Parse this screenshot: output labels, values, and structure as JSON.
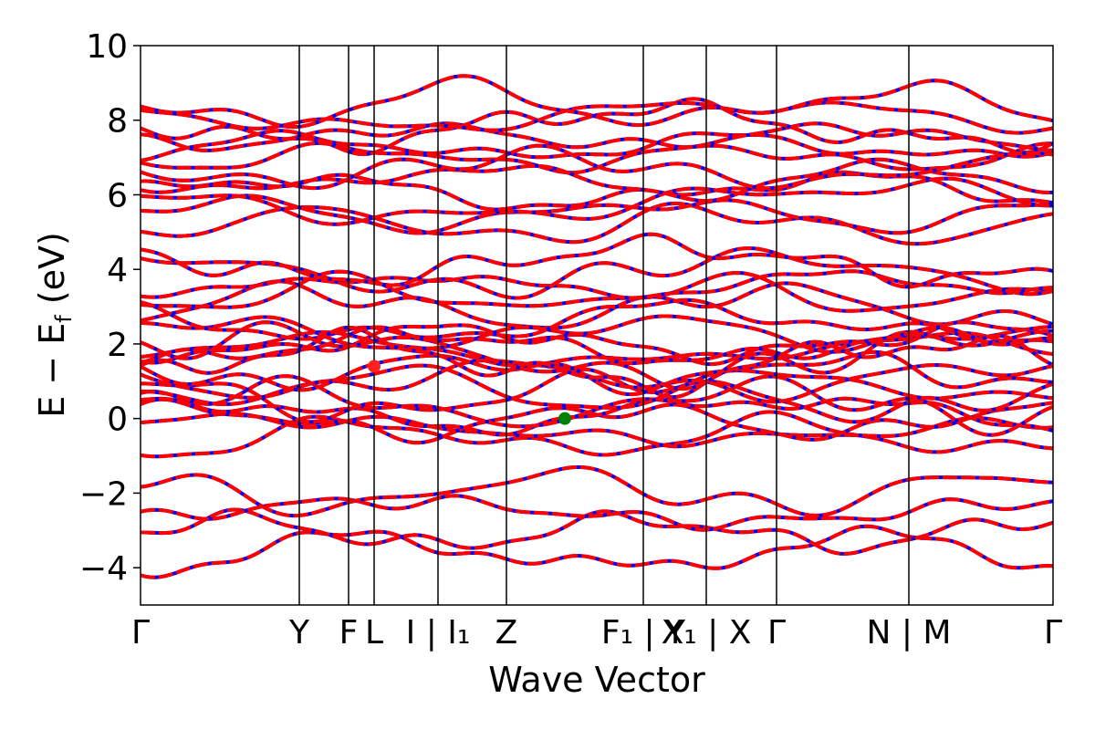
{
  "chart_data": {
    "type": "line",
    "title": "",
    "xlabel": "Wave Vector",
    "ylabel": "E − E",
    "ylabel_sub": "f",
    "ylabel_unit": " (eV)",
    "ylim": [
      -5,
      10
    ],
    "yticks": [
      {
        "value": -4,
        "label": "−4"
      },
      {
        "value": -2,
        "label": "−2"
      },
      {
        "value": 0,
        "label": "0"
      },
      {
        "value": 2,
        "label": "2"
      },
      {
        "value": 4,
        "label": "4"
      },
      {
        "value": 6,
        "label": "6"
      },
      {
        "value": 8,
        "label": "8"
      },
      {
        "value": 10,
        "label": "10"
      }
    ],
    "xlim": [
      0,
      1
    ],
    "kpoints": [
      {
        "pos": 0.0,
        "label": "Γ"
      },
      {
        "pos": 0.174,
        "label": "Y"
      },
      {
        "pos": 0.228,
        "label": "F"
      },
      {
        "pos": 0.256,
        "label": "L"
      },
      {
        "pos": 0.326,
        "label": "I | I₁"
      },
      {
        "pos": 0.401,
        "label": "Z"
      },
      {
        "pos": 0.551,
        "label": "F₁ | Y"
      },
      {
        "pos": 0.62,
        "label": "X₁ | X"
      },
      {
        "pos": 0.697,
        "label": "Γ"
      },
      {
        "pos": 0.842,
        "label": "N | M"
      },
      {
        "pos": 1.0,
        "label": "Γ"
      }
    ],
    "series_colors": {
      "primary": "#ff0000",
      "secondary": "#0000ff"
    },
    "markers": [
      {
        "x": 0.256,
        "y": 1.4,
        "color": "#ff2020",
        "role": "cbm"
      },
      {
        "x": 0.465,
        "y": 0.0,
        "color": "#008000",
        "role": "vbm"
      }
    ],
    "band_groups": [
      {
        "base": 7.0,
        "count": 6,
        "spacing": 0.28,
        "amp": 0.35
      },
      {
        "base": 5.2,
        "count": 6,
        "spacing": 0.3,
        "amp": 0.35
      },
      {
        "base": 3.0,
        "count": 5,
        "spacing": 0.3,
        "amp": 0.35
      },
      {
        "base": 1.8,
        "count": 4,
        "spacing": 0.25,
        "amp": 0.3
      },
      {
        "base": -0.5,
        "count": 12,
        "spacing": 0.22,
        "amp": 0.4
      },
      {
        "base": -3.6,
        "count": 4,
        "spacing": 0.55,
        "amp": 0.35
      }
    ]
  }
}
